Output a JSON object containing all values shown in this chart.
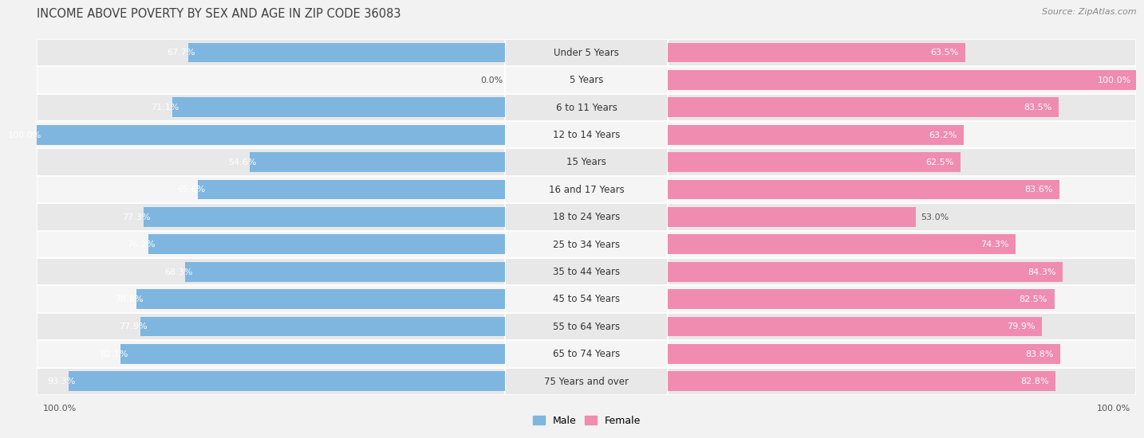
{
  "title": "INCOME ABOVE POVERTY BY SEX AND AGE IN ZIP CODE 36083",
  "source": "Source: ZipAtlas.com",
  "categories": [
    "Under 5 Years",
    "5 Years",
    "6 to 11 Years",
    "12 to 14 Years",
    "15 Years",
    "16 and 17 Years",
    "18 to 24 Years",
    "25 to 34 Years",
    "35 to 44 Years",
    "45 to 54 Years",
    "55 to 64 Years",
    "65 to 74 Years",
    "75 Years and over"
  ],
  "male_values": [
    67.7,
    0.0,
    71.1,
    100.0,
    54.6,
    65.6,
    77.3,
    76.2,
    68.3,
    78.8,
    77.9,
    82.1,
    93.3
  ],
  "female_values": [
    63.5,
    100.0,
    83.5,
    63.2,
    62.5,
    83.6,
    53.0,
    74.3,
    84.3,
    82.5,
    79.9,
    83.8,
    82.8
  ],
  "male_color": "#7eb6e0",
  "female_color": "#f08cb0",
  "male_color_light": "#c5dff2",
  "female_color_light": "#f8c8d8",
  "male_label": "Male",
  "female_label": "Female",
  "bg_color": "#f2f2f2",
  "row_colors": [
    "#e8e8e8",
    "#f5f5f5"
  ],
  "title_fontsize": 10.5,
  "label_fontsize": 8.5,
  "value_fontsize": 8.0,
  "source_fontsize": 8.0,
  "legend_fontsize": 9.0,
  "bottom_label": "100.0%"
}
